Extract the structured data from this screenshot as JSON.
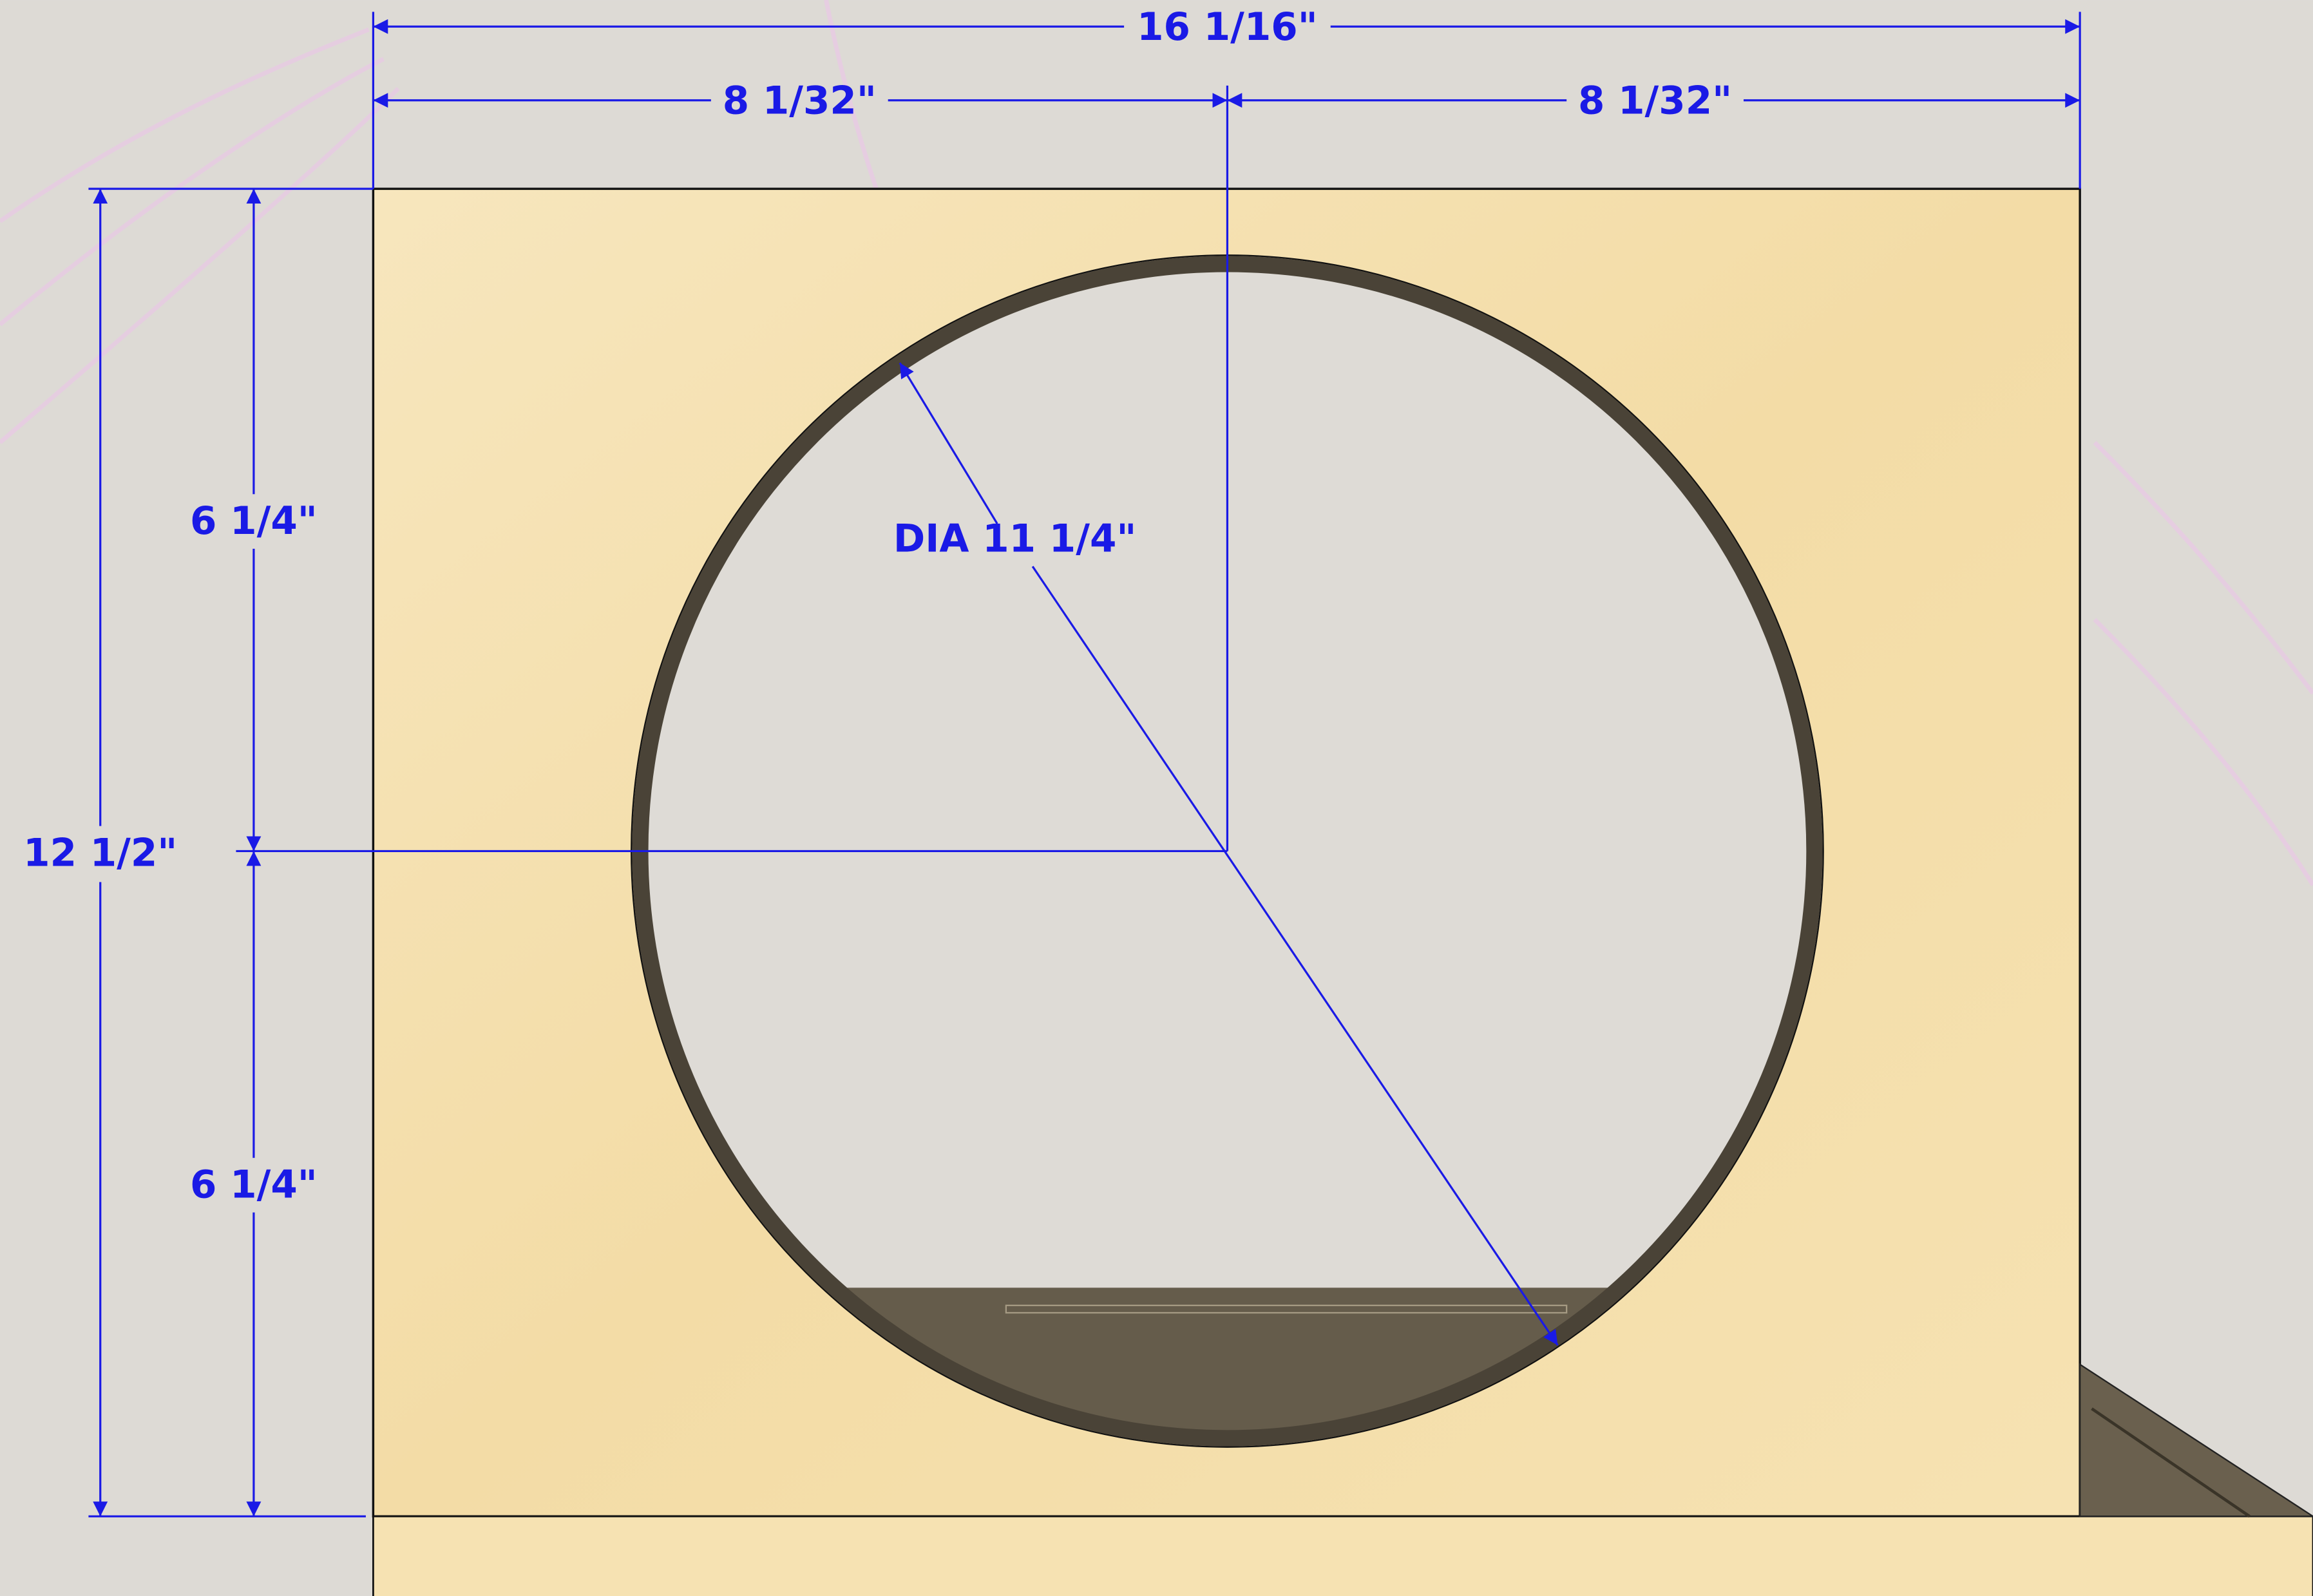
{
  "dimensions": {
    "overall_width": "16 1/16\"",
    "left_half_width": "8 1/32\"",
    "right_half_width": "8 1/32\"",
    "upper_height": "6 1/4\"",
    "lower_height": "6 1/4\"",
    "overall_height": "12 1/2\"",
    "hole_diameter": "DIA 11 1/4\""
  }
}
